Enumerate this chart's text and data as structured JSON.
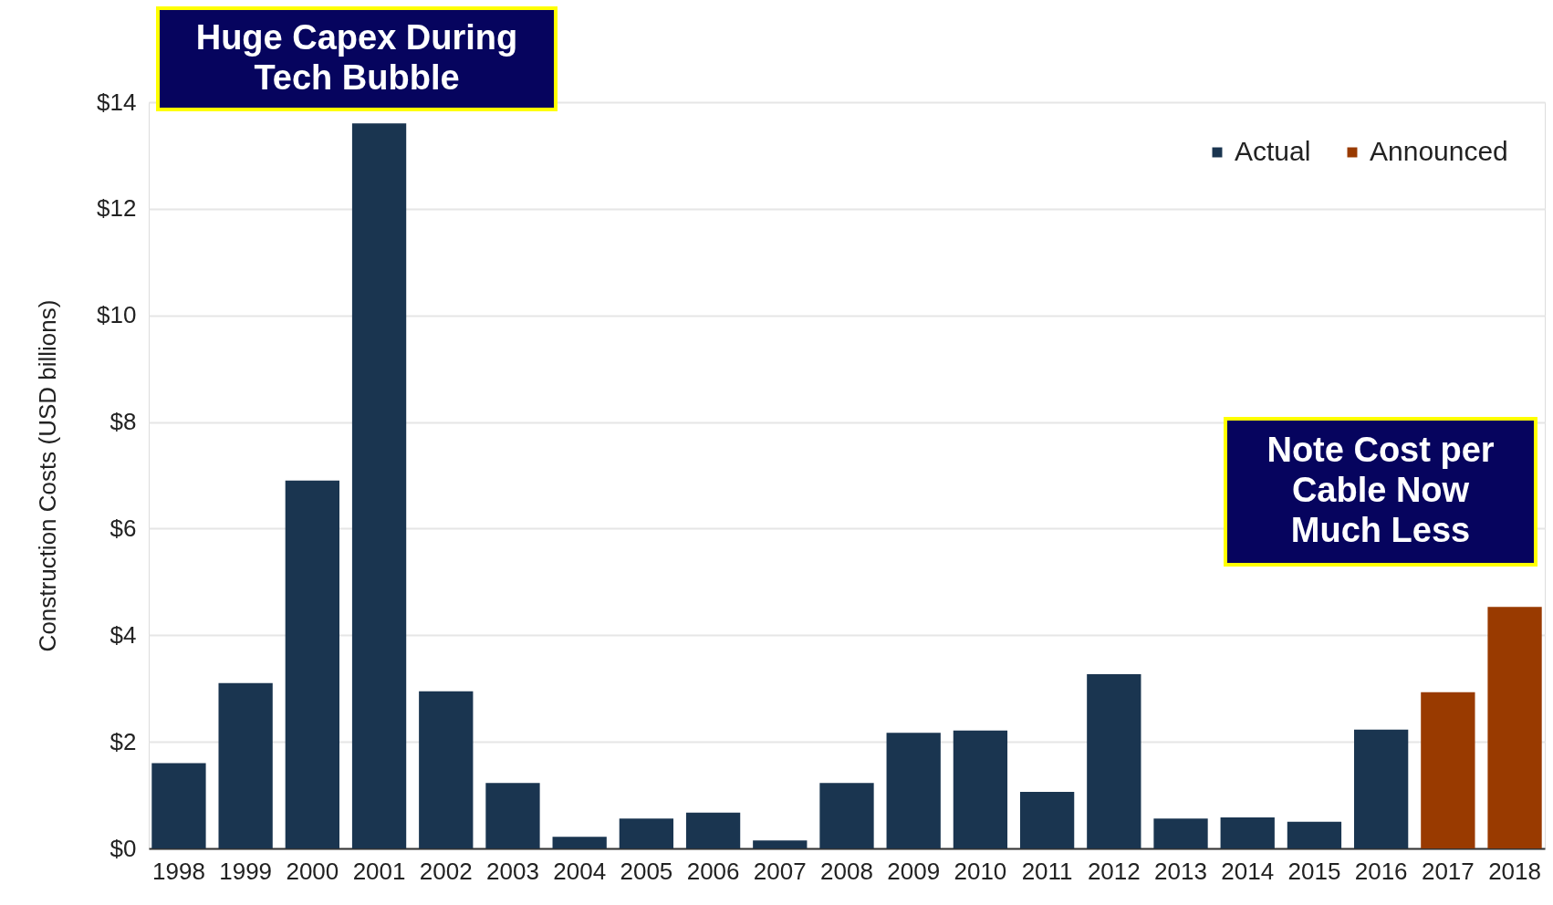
{
  "chart_data": {
    "type": "bar",
    "ylabel": "Construction Costs (USD billions)",
    "categories": [
      "1998",
      "1999",
      "2000",
      "2001",
      "2002",
      "2003",
      "2004",
      "2005",
      "2006",
      "2007",
      "2008",
      "2009",
      "2010",
      "2011",
      "2012",
      "2013",
      "2014",
      "2015",
      "2016",
      "2017",
      "2018"
    ],
    "series": [
      {
        "name": "Actual",
        "color": "#1a3550",
        "values": [
          1.6,
          3.1,
          6.9,
          13.6,
          2.95,
          1.23,
          0.22,
          0.56,
          0.67,
          0.15,
          1.23,
          2.17,
          2.21,
          1.06,
          3.27,
          0.56,
          0.58,
          0.5,
          2.23,
          null,
          null
        ]
      },
      {
        "name": "Announced",
        "color": "#993a00",
        "values": [
          null,
          null,
          null,
          null,
          null,
          null,
          null,
          null,
          null,
          null,
          null,
          null,
          null,
          null,
          null,
          null,
          null,
          null,
          null,
          2.93,
          4.53
        ]
      }
    ],
    "ylim": [
      0,
      14
    ],
    "yticks": [
      {
        "value": 0,
        "label": "$0"
      },
      {
        "value": 2,
        "label": "$2"
      },
      {
        "value": 4,
        "label": "$4"
      },
      {
        "value": 6,
        "label": "$6"
      },
      {
        "value": 8,
        "label": "$8"
      },
      {
        "value": 10,
        "label": "$10"
      },
      {
        "value": 12,
        "label": "$12"
      },
      {
        "value": 14,
        "label": "$14"
      }
    ],
    "grid": "y",
    "legend": "top right",
    "annotations": [
      "Huge Capex During\nTech Bubble",
      "Note Cost per\nCable Now\nMuch Less"
    ]
  }
}
